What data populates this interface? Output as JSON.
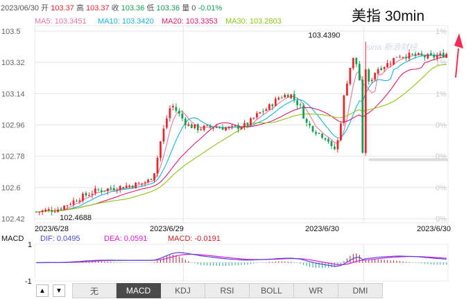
{
  "header": {
    "date": "2023/06/30",
    "open_label": "开",
    "open_value": "103.37",
    "high_label": "高",
    "high_value": "103.37",
    "close_label": "收",
    "close_value": "103.36",
    "low_label": "低",
    "low_value": "103.36",
    "volume_label": "量",
    "volume_value": "0",
    "change": "-0.01%"
  },
  "overlay_title": "美指 30min",
  "watermark": "sina 新浪财经",
  "ma_legend": [
    {
      "label": "MA5: 103.3451",
      "color": "#e8789a"
    },
    {
      "label": "MA10: 103.3420",
      "color": "#14b4d8"
    },
    {
      "label": "MA20: 103.3353",
      "color": "#e0186c"
    },
    {
      "label": "MA30: 103.2803",
      "color": "#8cc414"
    }
  ],
  "macd_legend": {
    "title": "MACD",
    "dif": "DIF: 0.0495",
    "dif_color": "#4a4ad8",
    "dea": "DEA: 0.0591",
    "dea_color": "#e018d0",
    "macd": "MACD: -0.0191",
    "macd_color": "#c81e1e"
  },
  "colors": {
    "up": "#e8262c",
    "down": "#14a050",
    "grid": "#e4e4e4",
    "axis_text": "#666666"
  },
  "tabs": {
    "up_arrow": "▲",
    "down_arrow": "▼",
    "items": [
      {
        "label": "无",
        "active": false
      },
      {
        "label": "MACD",
        "active": true
      },
      {
        "label": "KDJ",
        "active": false
      },
      {
        "label": "RSI",
        "active": false
      },
      {
        "label": "BOLL",
        "active": false
      },
      {
        "label": "WR",
        "active": false
      },
      {
        "label": "DMI",
        "active": false
      }
    ]
  },
  "chart_data": {
    "type": "candlestick",
    "y_ticks": [
      "103.5",
      "103.32",
      "103.14",
      "102.96",
      "102.78",
      "102.6",
      "102.42"
    ],
    "y_values": [
      103.5,
      103.32,
      103.14,
      102.96,
      102.78,
      102.6,
      102.42
    ],
    "pct_ticks": [
      "1%",
      "1%",
      "1%",
      "0%",
      "0%",
      "0%",
      "0%"
    ],
    "ylim": [
      102.42,
      103.5
    ],
    "x_ticks": [
      {
        "label": "2023/6/28",
        "index": 0
      },
      {
        "label": "2023/6/29",
        "index": 48
      },
      {
        "label": "2023/6/30",
        "index": 106
      },
      {
        "label": "2023/6/30",
        "index": 129
      }
    ],
    "annotations": [
      {
        "label": "102.4688",
        "index": 9,
        "value": 102.4688
      },
      {
        "label": "103.4390",
        "index": 106,
        "value": 103.439
      }
    ],
    "current_level": 102.76,
    "macd_ticks": [
      "1",
      "-1"
    ],
    "macd_ylim": [
      -1,
      1
    ]
  }
}
